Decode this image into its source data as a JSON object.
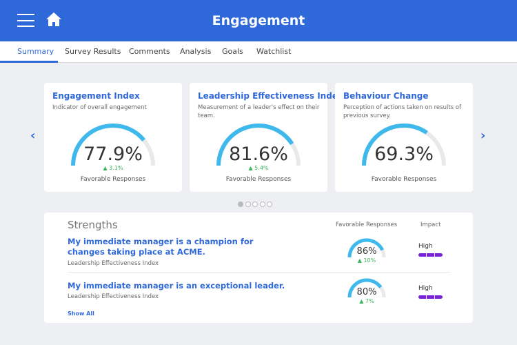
{
  "header": {
    "title": "Engagement",
    "menu_icon": "hamburger-icon",
    "home_icon": "home-icon"
  },
  "tabs": [
    {
      "label": "Summary",
      "active": true
    },
    {
      "label": "Survey Results"
    },
    {
      "label": "Comments"
    },
    {
      "label": "Analysis"
    },
    {
      "label": "Goals"
    },
    {
      "label": "Watchlist"
    }
  ],
  "carousel": {
    "prev": "‹",
    "next": "›",
    "pages": 5,
    "current": 1
  },
  "cards": [
    {
      "title": "Engagement Index",
      "desc": "Indicator of overall engagement",
      "value": "77.9%",
      "fraction": 0.779,
      "change": "▲ 3.1%",
      "footer": "Favorable Responses"
    },
    {
      "title": "Leadership Effectiveness Index",
      "desc": "Measurement of a leader's effect on their team.",
      "value": "81.6%",
      "fraction": 0.816,
      "change": "▲ 5.4%",
      "footer": "Favorable Responses"
    },
    {
      "title": "Behaviour Change",
      "desc": "Perception of actions taken on results of previous survey.",
      "value": "69.3%",
      "fraction": 0.693,
      "change": "",
      "footer": "Favorable Responses"
    }
  ],
  "strengths": {
    "title": "Strengths",
    "col_favorable": "Favorable Responses",
    "col_impact": "Impact",
    "rows": [
      {
        "question": "My immediate manager is a champion for changes taking place at ACME.",
        "category": "Leadership Effectiveness Index",
        "value": "86%",
        "fraction": 0.86,
        "change": "▲ 10%",
        "impact": "High",
        "impact_level": 3
      },
      {
        "question": "My immediate manager is an exceptional leader.",
        "category": "Leadership Effectiveness Index",
        "value": "80%",
        "fraction": 0.8,
        "change": "▲ 7%",
        "impact": "High",
        "impact_level": 3
      }
    ],
    "show_all": "Show All"
  },
  "colors": {
    "brand": "#2f69d9",
    "gauge": "#3fb8ec",
    "track": "#e9e9ec",
    "positive": "#3bb55a",
    "impact": "#7a22d8"
  }
}
